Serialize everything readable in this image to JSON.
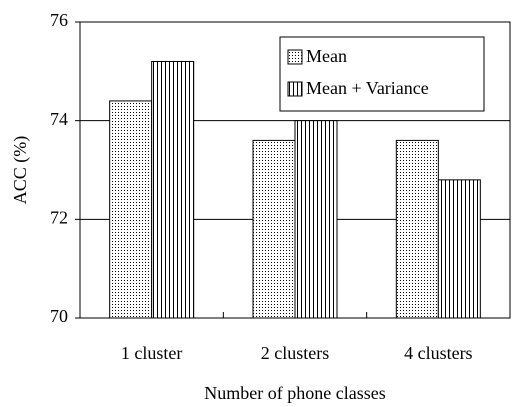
{
  "chart_data": {
    "type": "bar",
    "categories": [
      "1 cluster",
      "2 clusters",
      "4 clusters"
    ],
    "series": [
      {
        "name": "Mean",
        "color": "#000000",
        "pattern": "dots",
        "values": [
          74.4,
          73.6,
          73.6
        ]
      },
      {
        "name": "Mean + Variance",
        "color": "#000000",
        "pattern": "vlines",
        "values": [
          75.2,
          74.0,
          72.8
        ]
      }
    ],
    "x_label": "Number of phone classes",
    "y_label": "ACC (%)",
    "ylim": [
      70,
      76
    ],
    "yticks": [
      70,
      72,
      74,
      76
    ],
    "grid": true,
    "legend": "upper right"
  }
}
